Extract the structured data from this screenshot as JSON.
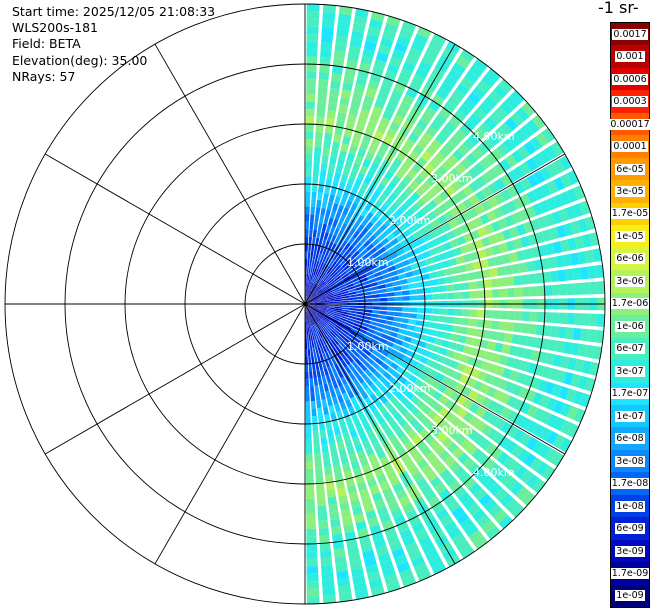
{
  "info": {
    "start_time": "Start time: 2025/12/05 21:08:33",
    "instrument": "WLS200s-181",
    "field": "Field: BETA",
    "elevation": "Elevation(deg): 35.00",
    "nrays": "NRays: 57"
  },
  "colorbar": {
    "title": "-1 sr-",
    "levels": [
      {
        "label": "0.0017",
        "color": "#8b0000"
      },
      {
        "label": "0.001",
        "color": "#b80000"
      },
      {
        "label": "0.0006",
        "color": "#e00000"
      },
      {
        "label": "0.0003",
        "color": "#ff2000"
      },
      {
        "label": "0.00017",
        "color": "#ff5a00"
      },
      {
        "label": "0.0001",
        "color": "#ff7f00"
      },
      {
        "label": "6e-05",
        "color": "#ff9a00"
      },
      {
        "label": "3e-05",
        "color": "#ffb000"
      },
      {
        "label": "1.7e-05",
        "color": "#ffd000"
      },
      {
        "label": "1e-05",
        "color": "#f7ef1b"
      },
      {
        "label": "6e-06",
        "color": "#d6f542"
      },
      {
        "label": "3e-06",
        "color": "#b4f25a"
      },
      {
        "label": "1.7e-06",
        "color": "#8ef07a"
      },
      {
        "label": "1e-06",
        "color": "#6aee9c"
      },
      {
        "label": "6e-07",
        "color": "#48edc0"
      },
      {
        "label": "3e-07",
        "color": "#2cedde"
      },
      {
        "label": "1.7e-07",
        "color": "#1ee4ff"
      },
      {
        "label": "1e-07",
        "color": "#15c8ff"
      },
      {
        "label": "6e-08",
        "color": "#10a8ff"
      },
      {
        "label": "3e-08",
        "color": "#0a88ff"
      },
      {
        "label": "1.7e-08",
        "color": "#0566f5"
      },
      {
        "label": "1e-08",
        "color": "#0040e8"
      },
      {
        "label": "6e-09",
        "color": "#0020d8"
      },
      {
        "label": "3e-09",
        "color": "#0008c0"
      },
      {
        "label": "1.7e-09",
        "color": "#00009c"
      },
      {
        "label": "1e-09",
        "color": "#000078"
      }
    ]
  },
  "chart_data": {
    "type": "heatmap",
    "projection": "polar",
    "angular_coverage_deg": [
      0,
      180
    ],
    "ring_labels": [
      "1.00km",
      "2.00km",
      "3.00km",
      "4.00km"
    ],
    "ring_ranges_km": [
      1,
      2,
      3,
      4,
      5
    ],
    "max_range_km": 5,
    "spoke_angles_deg": [
      0,
      30,
      60,
      90,
      120,
      150,
      180,
      210,
      240,
      270,
      300,
      330
    ],
    "nrays": 57,
    "field": "BETA",
    "range_profile": [
      {
        "range_km": 0.0,
        "level": "1e-09"
      },
      {
        "range_km": 0.5,
        "level": "6e-09"
      },
      {
        "range_km": 1.0,
        "level": "1e-08"
      },
      {
        "range_km": 1.5,
        "level": "3e-08"
      },
      {
        "range_km": 2.0,
        "level": "1.7e-07"
      },
      {
        "range_km": 2.5,
        "level": "6e-07"
      },
      {
        "range_km": 3.0,
        "level": "1.7e-06"
      },
      {
        "range_km": 3.5,
        "level": "1e-06"
      },
      {
        "range_km": 4.0,
        "level": "6e-07"
      },
      {
        "range_km": 4.5,
        "level": "3e-07"
      },
      {
        "range_km": 5.0,
        "level": "6e-07"
      }
    ]
  }
}
